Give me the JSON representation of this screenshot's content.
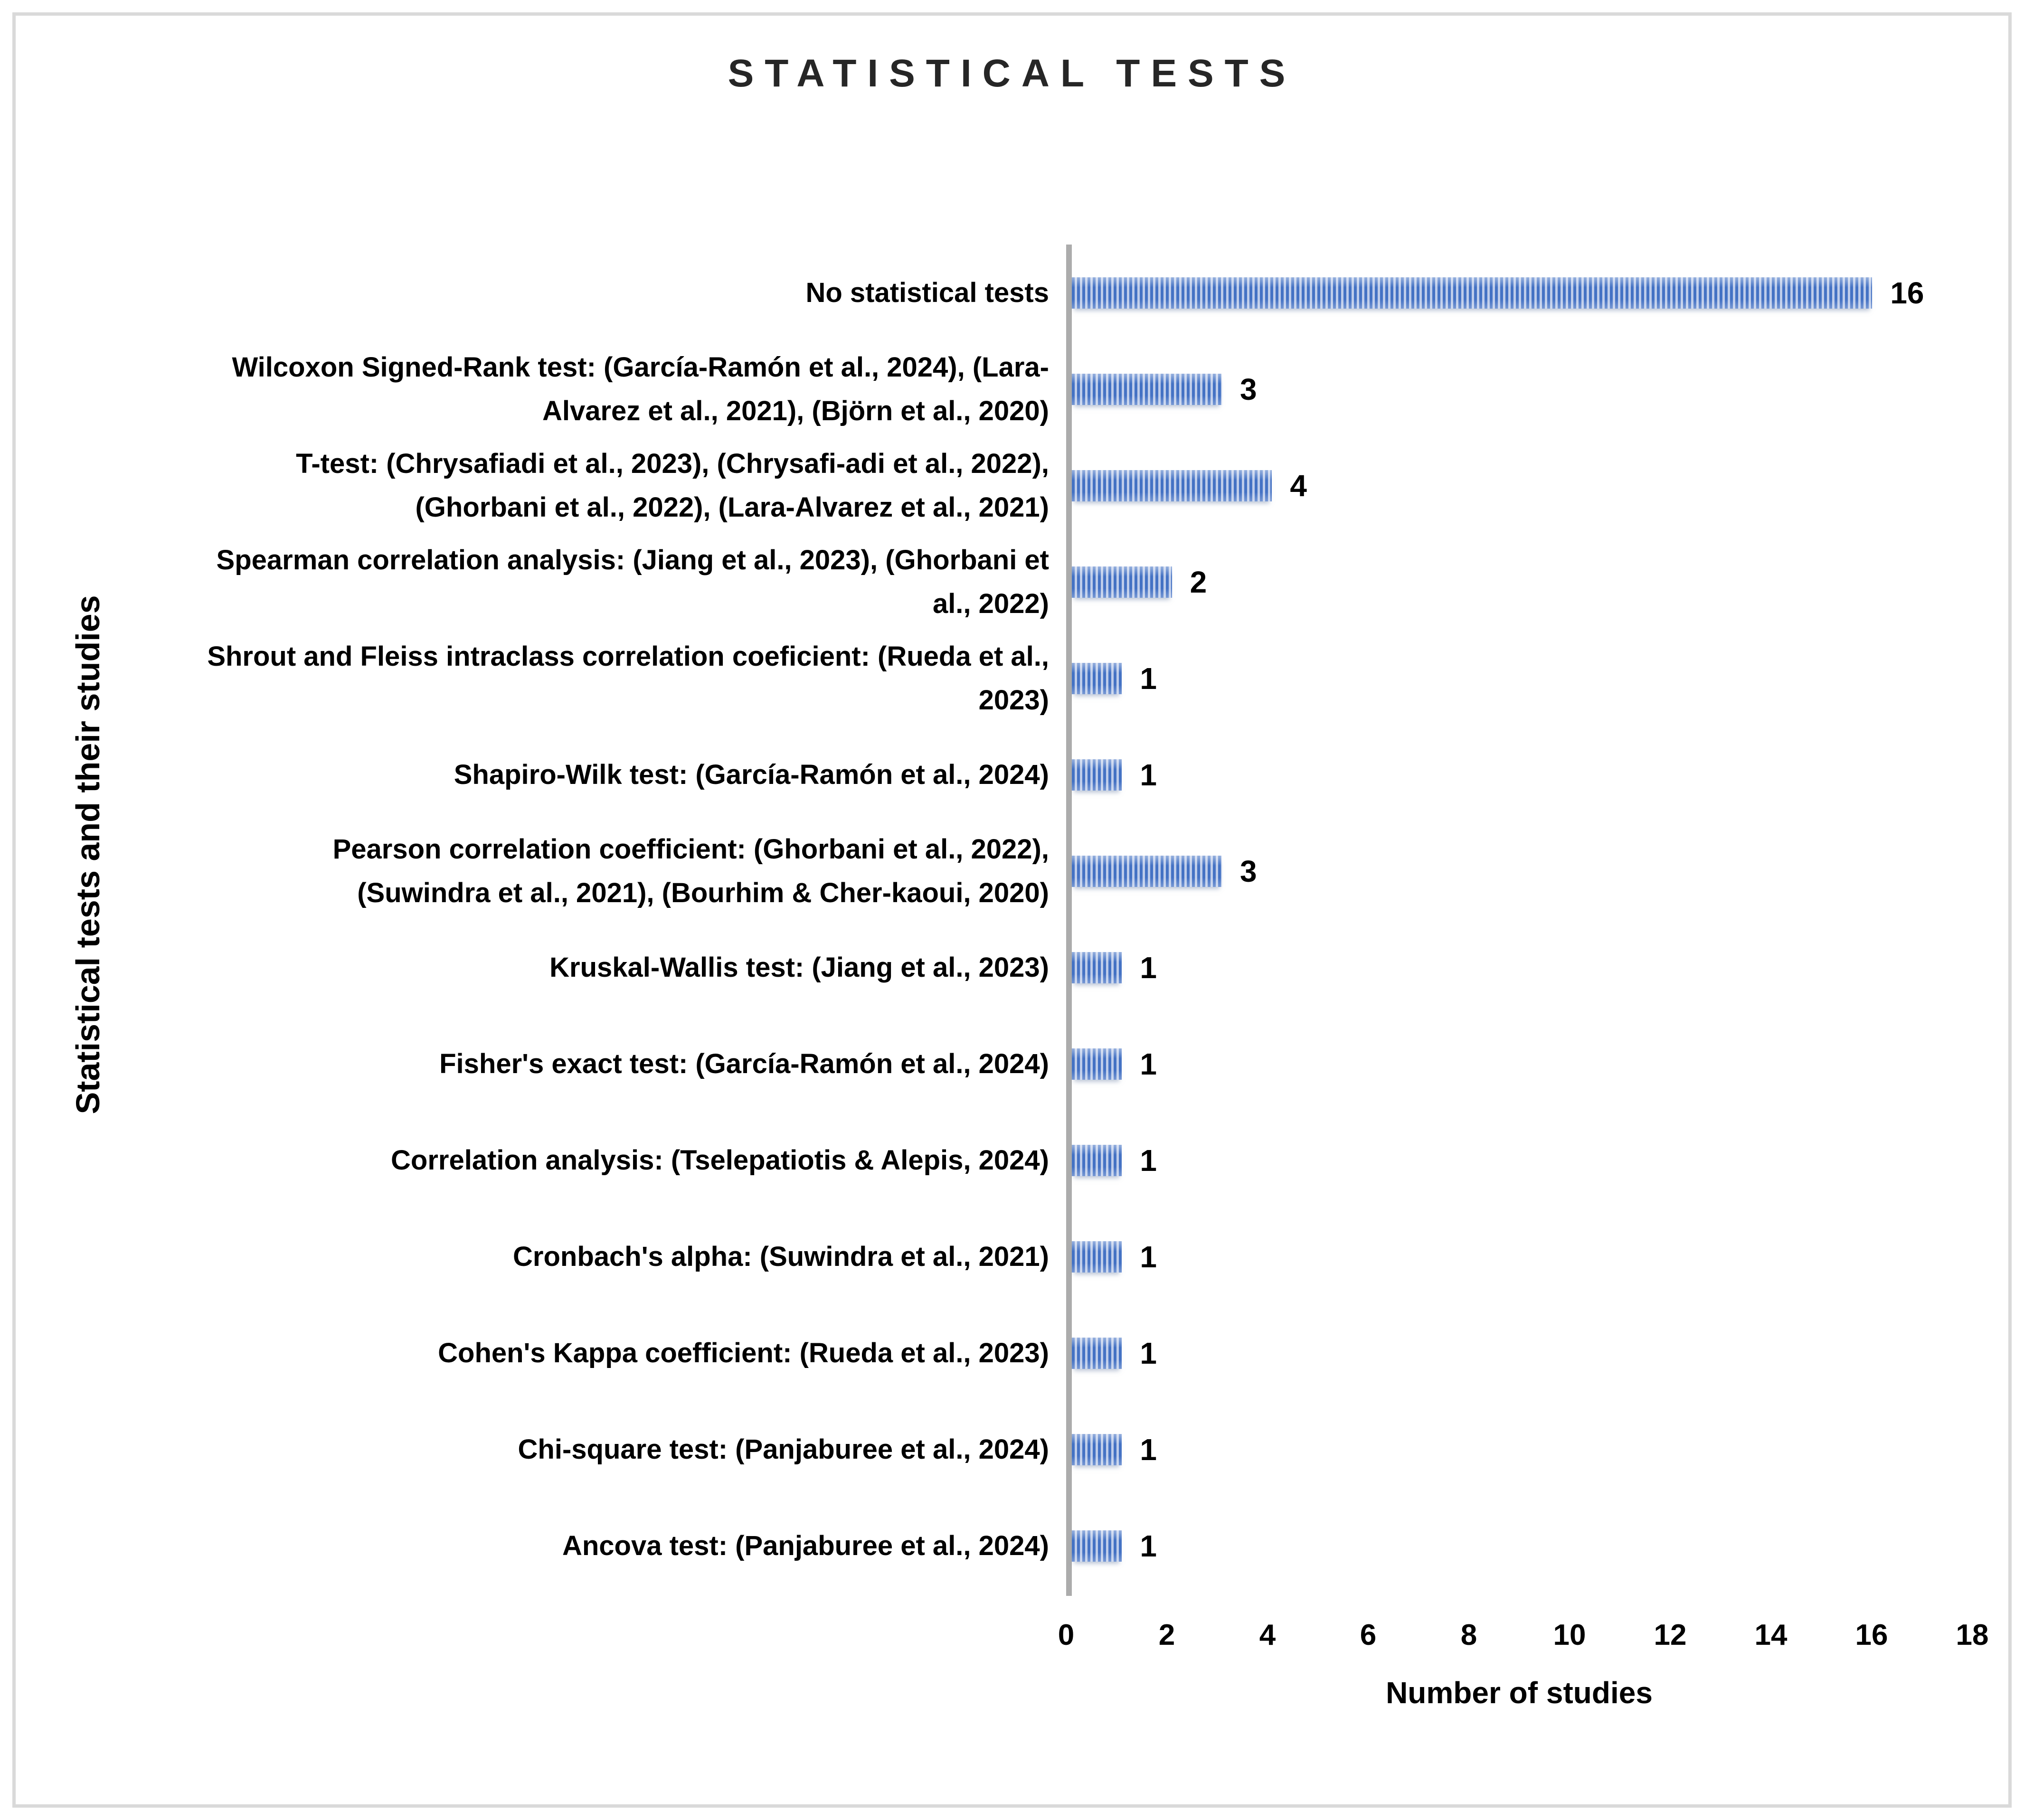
{
  "page": {
    "background": "#ffffff",
    "frame_border_color": "#D9D9D9"
  },
  "chart_data": {
    "type": "bar",
    "orientation": "horizontal",
    "title": "STATISTICAL TESTS",
    "xlabel": "Number of studies",
    "ylabel": "Statistical tests and their studies",
    "xlim": [
      0,
      18
    ],
    "x_ticks": [
      0,
      2,
      4,
      6,
      8,
      10,
      12,
      14,
      16,
      18
    ],
    "grid": false,
    "legend": false,
    "data_labels_shown": true,
    "axis_line_color": "#ACACAC",
    "bar_pattern": {
      "style": "vertical-stripes",
      "dark_color": "#4472C4",
      "light_color": "#BDCCEA"
    },
    "categories": [
      "No statistical tests",
      "Wilcoxon Signed-Rank test: (García-Ramón et al., 2024), (Lara-Alvarez et al., 2021), (Björn et al., 2020)",
      "T-test: (Chrysafiadi et al., 2023), (Chrysafi-adi et al., 2022), (Ghorbani et al., 2022), (Lara-Alvarez et al., 2021)",
      "Spearman correlation analysis: (Jiang et al., 2023), (Ghorbani et al., 2022)",
      "Shrout and Fleiss intraclass correlation coeficient: (Rueda et al., 2023)",
      "Shapiro-Wilk test: (García-Ramón et al., 2024)",
      "Pearson correlation coefficient: (Ghorbani et al., 2022), (Suwindra et al., 2021), (Bourhim & Cher-kaoui, 2020)",
      "Kruskal-Wallis test: (Jiang et al., 2023)",
      "Fisher's exact test: (García-Ramón et al., 2024)",
      "Correlation analysis: (Tselepatiotis & Alepis, 2024)",
      "Cronbach's alpha: (Suwindra et al., 2021)",
      "Cohen's Kappa coefficient:  (Rueda et al., 2023)",
      "Chi-square test: (Panjaburee et al., 2024)",
      "Ancova test: (Panjaburee et al., 2024)"
    ],
    "values": [
      16,
      3,
      4,
      2,
      1,
      1,
      3,
      1,
      1,
      1,
      1,
      1,
      1,
      1
    ]
  }
}
